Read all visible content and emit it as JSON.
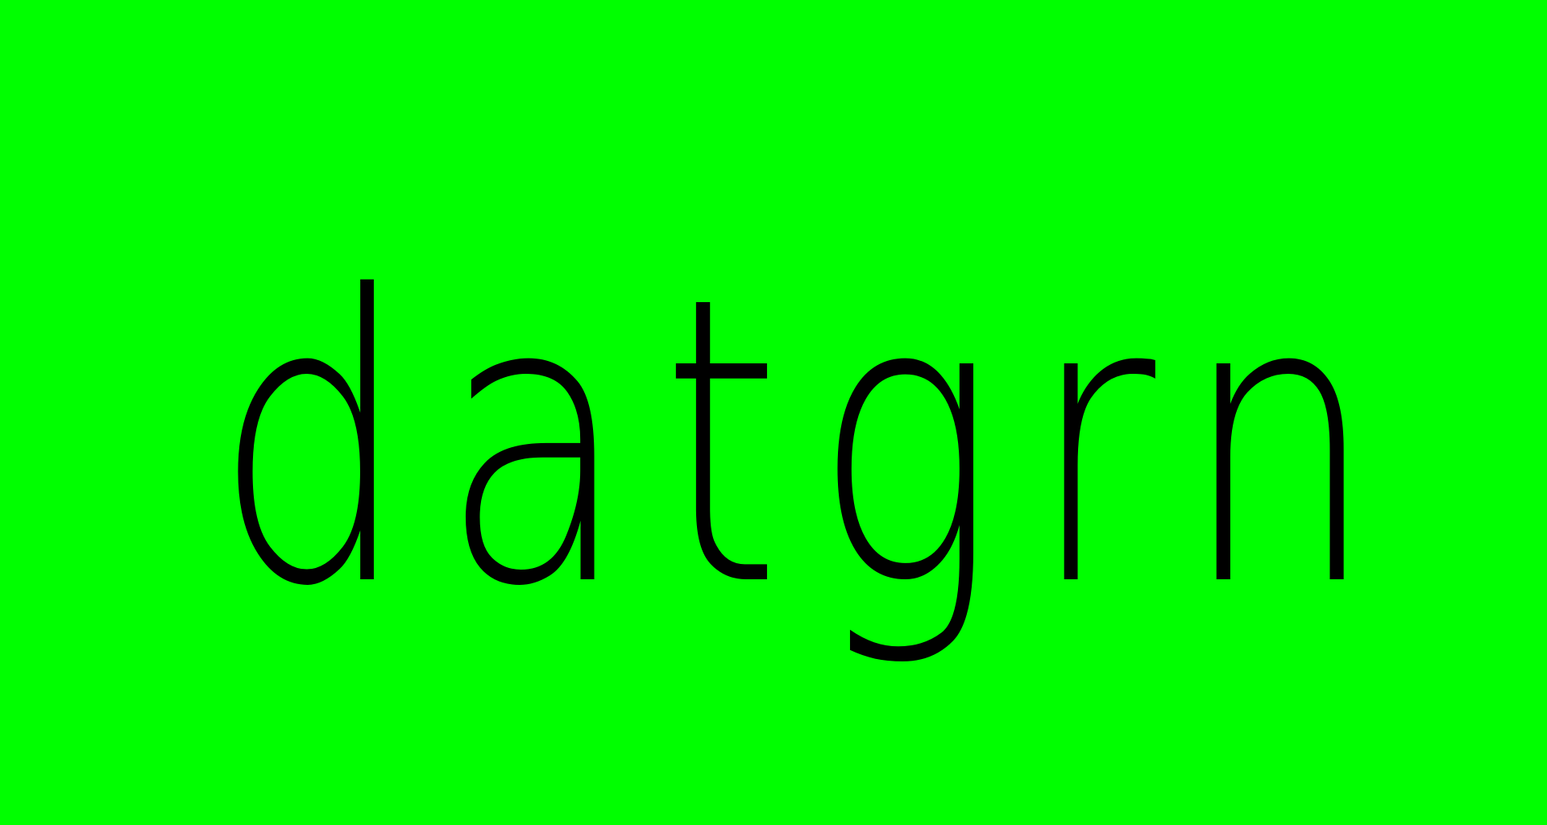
{
  "background_color": "#00ff00",
  "text_color": "#000000",
  "word": "datgrn"
}
